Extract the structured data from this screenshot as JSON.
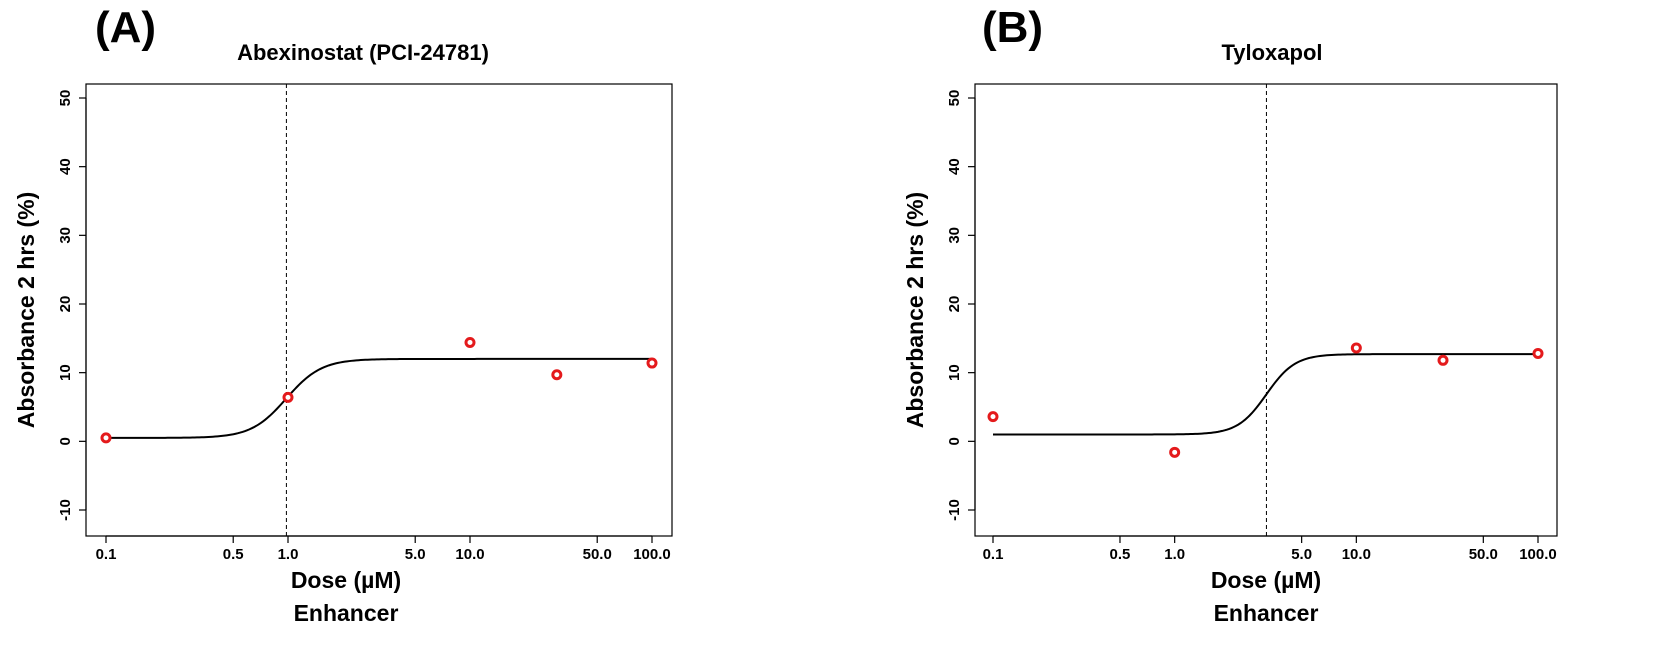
{
  "chart_data": [
    {
      "type": "scatter",
      "panel_label": "(A)",
      "title": "Abexinostat (PCI-24781)",
      "xlabel": "Dose (µM)",
      "xsublabel": "Enhancer",
      "ylabel": "Absorbance 2 hrs (%)",
      "xscale": "log",
      "xlim": [
        0.1,
        100
      ],
      "ylim": [
        -10,
        50
      ],
      "xticks": [
        0.1,
        0.5,
        1.0,
        5.0,
        10.0,
        50.0,
        100.0
      ],
      "xtick_labels": [
        "0.1",
        "0.5",
        "1.0",
        "5.0",
        "10.0",
        "50.0",
        "100.0"
      ],
      "yticks": [
        -10,
        0,
        10,
        20,
        30,
        40,
        50
      ],
      "ytick_labels": [
        "-10",
        "0",
        "10",
        "20",
        "30",
        "40",
        "50"
      ],
      "marker_color": "#e41a1c",
      "curve_color": "#000000",
      "points": {
        "x": [
          0.1,
          1.0,
          10.0,
          30.0,
          100.0
        ],
        "y": [
          0.5,
          6.4,
          14.4,
          9.7,
          11.4
        ]
      },
      "fit": {
        "model": "log-logistic",
        "bottom": 0.5,
        "top": 12.0,
        "ec50": 0.98,
        "hill": 4.5
      },
      "vline_x": 0.98
    },
    {
      "type": "scatter",
      "panel_label": "(B)",
      "title": "Tyloxapol",
      "xlabel": "Dose (µM)",
      "xsublabel": "Enhancer",
      "ylabel": "Absorbance 2 hrs (%)",
      "xscale": "log",
      "xlim": [
        0.1,
        100
      ],
      "ylim": [
        -10,
        50
      ],
      "xticks": [
        0.1,
        0.5,
        1.0,
        5.0,
        10.0,
        50.0,
        100.0
      ],
      "xtick_labels": [
        "0.1",
        "0.5",
        "1.0",
        "5.0",
        "10.0",
        "50.0",
        "100.0"
      ],
      "yticks": [
        -10,
        0,
        10,
        20,
        30,
        40,
        50
      ],
      "ytick_labels": [
        "-10",
        "0",
        "10",
        "20",
        "30",
        "40",
        "50"
      ],
      "marker_color": "#e41a1c",
      "curve_color": "#000000",
      "points": {
        "x": [
          0.1,
          1.0,
          10.0,
          30.0,
          100.0
        ],
        "y": [
          3.6,
          -1.6,
          13.6,
          11.8,
          12.8
        ]
      },
      "fit": {
        "model": "log-logistic",
        "bottom": 1.0,
        "top": 12.7,
        "ec50": 3.2,
        "hill": 5.5
      },
      "vline_x": 3.2
    }
  ]
}
